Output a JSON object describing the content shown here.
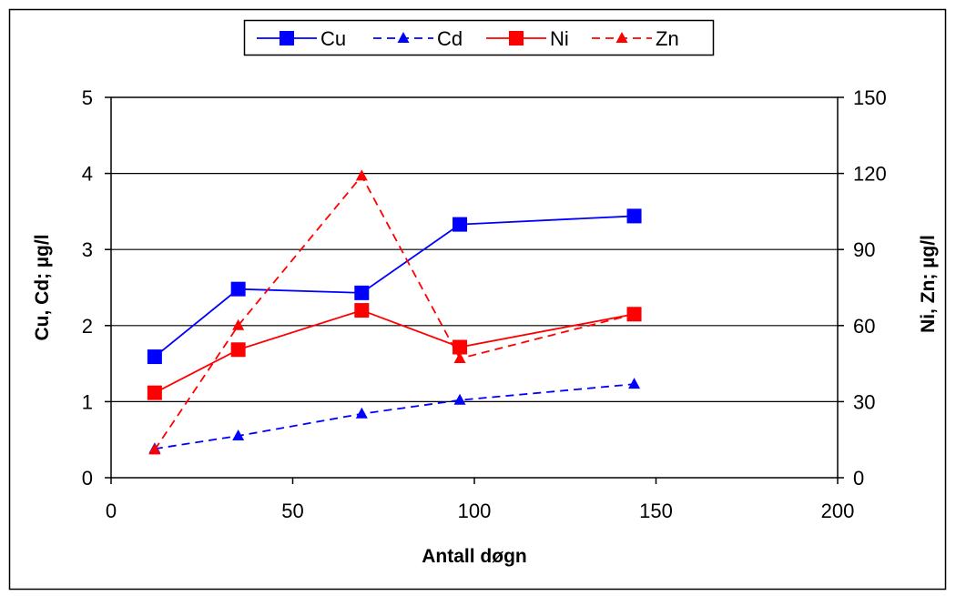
{
  "chart_data": {
    "type": "line",
    "title": "",
    "xlabel": "Antall døgn",
    "ylabel_left": "Cu, Cd; µg/l",
    "ylabel_right": "Ni, Zn; µg/l",
    "xlim": [
      0,
      200
    ],
    "ylim_left": [
      0,
      5
    ],
    "ylim_right": [
      0,
      150
    ],
    "x_ticks": [
      "0",
      "50",
      "100",
      "150",
      "200"
    ],
    "y_left_ticks": [
      "0",
      "1",
      "2",
      "3",
      "4",
      "5"
    ],
    "y_right_ticks": [
      "0",
      "30",
      "60",
      "90",
      "120",
      "150"
    ],
    "grid": "horizontal",
    "legend_position": "top",
    "series": [
      {
        "name": "Cu",
        "axis": "left",
        "color": "#0000FF",
        "line": "solid",
        "marker": "square",
        "x": [
          12,
          35,
          69,
          96,
          144
        ],
        "y": [
          1.59,
          2.48,
          2.43,
          3.33,
          3.44
        ]
      },
      {
        "name": "Cd",
        "axis": "left",
        "color": "#0000FF",
        "line": "dashed",
        "marker": "triangle",
        "x": [
          12,
          35,
          69,
          96,
          144
        ],
        "y": [
          0.38,
          0.55,
          0.84,
          1.02,
          1.23
        ]
      },
      {
        "name": "Ni",
        "axis": "right",
        "color": "#FF0000",
        "line": "solid",
        "marker": "square",
        "x": [
          12,
          35,
          69,
          96,
          144
        ],
        "y": [
          33.5,
          50.5,
          66,
          51.5,
          64.5
        ]
      },
      {
        "name": "Zn",
        "axis": "right",
        "color": "#FF0000",
        "line": "dashed",
        "marker": "triangle",
        "x": [
          12,
          35,
          69,
          96,
          144
        ],
        "y": [
          11,
          60,
          119,
          47,
          64.5
        ]
      }
    ]
  }
}
